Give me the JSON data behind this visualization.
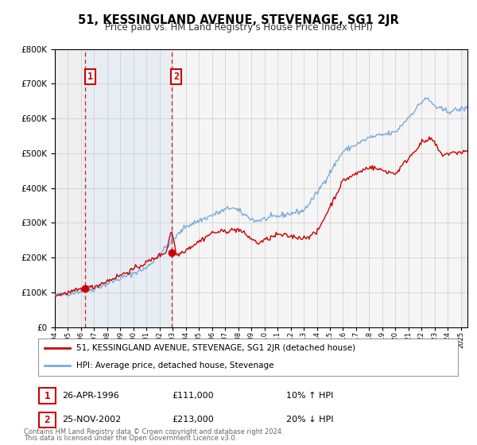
{
  "title": "51, KESSINGLAND AVENUE, STEVENAGE, SG1 2JR",
  "subtitle": "Price paid vs. HM Land Registry's House Price Index (HPI)",
  "legend_line1": "51, KESSINGLAND AVENUE, STEVENAGE, SG1 2JR (detached house)",
  "legend_line2": "HPI: Average price, detached house, Stevenage",
  "footer1": "Contains HM Land Registry data © Crown copyright and database right 2024.",
  "footer2": "This data is licensed under the Open Government Licence v3.0.",
  "sale1_label": "1",
  "sale1_date": "26-APR-1996",
  "sale1_price": "£111,000",
  "sale1_hpi": "10% ↑ HPI",
  "sale2_label": "2",
  "sale2_date": "25-NOV-2002",
  "sale2_price": "£213,000",
  "sale2_hpi": "20% ↓ HPI",
  "price_color": "#cc0000",
  "hpi_color": "#7aabdc",
  "ylim": [
    0,
    800000
  ],
  "xlim_start": 1994.0,
  "xlim_end": 2025.5,
  "sale1_x": 1996.32,
  "sale1_y": 111000,
  "sale2_x": 2002.9,
  "sale2_y": 213000
}
